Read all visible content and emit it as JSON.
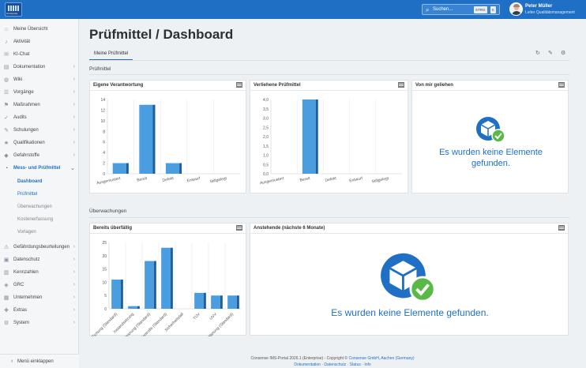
{
  "app": {
    "logo_text": "Consense",
    "search_placeholder": "Suchen...",
    "search_shortcut": [
      "STRG",
      "K"
    ],
    "user_name": "Peter Müller",
    "user_role": "Leiter Qualitätsmanagement"
  },
  "sidebar": {
    "items": [
      {
        "label": "Meine Übersicht",
        "icon": "home-icon",
        "chev": false
      },
      {
        "label": "Aktivität",
        "icon": "bell-icon",
        "chev": false
      },
      {
        "label": "KI-Chat",
        "icon": "chat-icon",
        "chev": false
      },
      {
        "label": "Dokumentation",
        "icon": "document-icon",
        "chev": true
      },
      {
        "label": "Wiki",
        "icon": "globe-icon",
        "chev": true
      },
      {
        "label": "Vorgänge",
        "icon": "tasks-icon",
        "chev": true
      },
      {
        "label": "Maßnahmen",
        "icon": "measures-icon",
        "chev": true
      },
      {
        "label": "Audits",
        "icon": "audit-icon",
        "chev": true
      },
      {
        "label": "Schulungen",
        "icon": "training-icon",
        "chev": true
      },
      {
        "label": "Qualifikationen",
        "icon": "qualification-icon",
        "chev": true
      },
      {
        "label": "Gefahrstoffe",
        "icon": "hazard-icon",
        "chev": true
      },
      {
        "label": "Mess- und Prüfmittel",
        "icon": "gauge-icon",
        "chev": true
      }
    ],
    "sub_items": [
      "Dashboard",
      "Prüfmittel",
      "Überwachungen",
      "Kostenerfassung",
      "Vorlagen"
    ],
    "items_after": [
      {
        "label": "Gefährdungsbeurteilungen",
        "icon": "warning-icon"
      },
      {
        "label": "Datenschutz",
        "icon": "lock-icon"
      },
      {
        "label": "Kennzahlen",
        "icon": "chart-icon"
      },
      {
        "label": "GRC",
        "icon": "grc-icon"
      },
      {
        "label": "Unternehmen",
        "icon": "company-icon"
      },
      {
        "label": "Extras",
        "icon": "extras-icon"
      },
      {
        "label": "System",
        "icon": "gear-icon"
      }
    ],
    "collapse_label": "Menü einklappen"
  },
  "main": {
    "title": "Prüfmittel / Dashboard",
    "tab": "Meine Prüfmittel",
    "section1": "Prüfmittel",
    "section2": "Überwachungen",
    "cards": {
      "eigene": "Eigene Verantwortung",
      "verliehene": "Verliehene Prüfmittel",
      "geliehen": "Von mir geliehen",
      "ueberfaellig": "Bereits überfällig",
      "anstehende": "Anstehende (nächste 6 Monate)"
    },
    "empty_message": "Es wurden keine Elemente gefunden."
  },
  "footer": {
    "line1_prefix": "Consense IMS-Portal 2026.1 (Enterprise) - Copyright ©",
    "company": "Consense GmbH, Aachen (Germany)",
    "links": [
      "Dokumentation",
      "Datenschutz",
      "Status",
      "Info"
    ]
  },
  "colors": {
    "accent": "#1f6fc5",
    "bar": "#4a9ee0",
    "bar_dark": "#1d5f9e"
  },
  "chart_data": [
    {
      "type": "bar",
      "title": "Eigene Verantwortung",
      "categories": [
        "Ausgemustert",
        "Bereit",
        "Defekt",
        "Entwurf",
        "Stillgelegt"
      ],
      "values": [
        2,
        13,
        2,
        0,
        0
      ],
      "ylim": [
        0,
        14
      ],
      "yticks": [
        0,
        2,
        4,
        6,
        8,
        10,
        12,
        14
      ]
    },
    {
      "type": "bar",
      "title": "Verliehene Prüfmittel",
      "categories": [
        "Ausgemustert",
        "Bereit",
        "Defekt",
        "Entwurf",
        "Stillgelegt"
      ],
      "values": [
        0,
        4,
        0,
        0,
        0
      ],
      "ylim": [
        0,
        4
      ],
      "yticks": [
        "0,0",
        "0,5",
        "1,0",
        "1,5",
        "2,0",
        "2,5",
        "3,0",
        "3,5",
        "4,0"
      ]
    },
    {
      "type": "bar",
      "title": "Bereits überfällig",
      "categories": [
        "Eichung (Standard)",
        "Instandsetzung",
        "Kalibrierung (Standard)",
        "Kontrolle (Standard)",
        "Sicherheitsfall",
        "TÜV",
        "UVV",
        "Wartung (Standard)"
      ],
      "values": [
        11,
        1,
        18,
        23,
        0,
        6,
        5,
        5
      ],
      "ylim": [
        0,
        25
      ],
      "yticks": [
        0,
        5,
        10,
        15,
        20,
        25
      ]
    }
  ]
}
